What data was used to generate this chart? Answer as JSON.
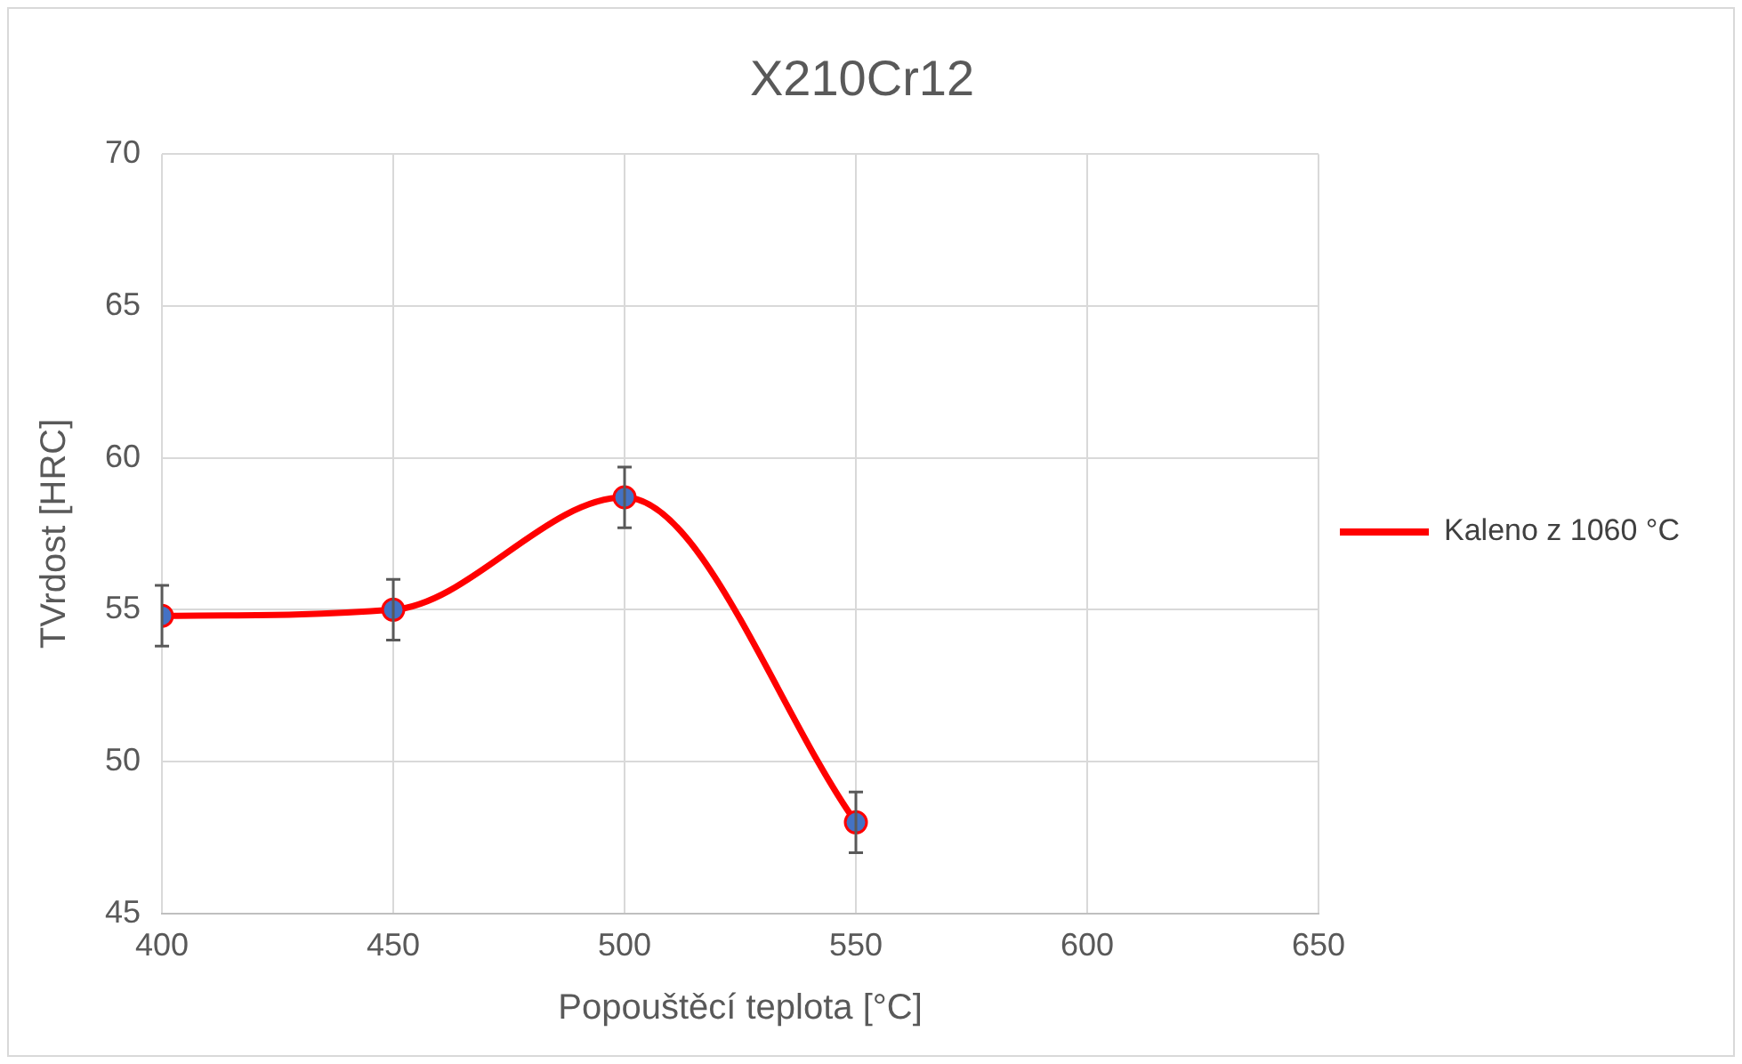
{
  "chart_data": {
    "type": "line",
    "title": "X210Cr12",
    "xlabel": "Popouštěcí teplota [°C]",
    "ylabel": "TVrdost [HRC]",
    "x": [
      400,
      450,
      500,
      550
    ],
    "series": [
      {
        "name": "Kaleno z 1060 °C",
        "color": "#ff0000",
        "colors": [
          "#4472c4",
          "#4472c4",
          "#4472c4",
          "#4472c4"
        ],
        "values": [
          54.8,
          55.0,
          58.7,
          48.0
        ],
        "errors": [
          1,
          1,
          1,
          1
        ]
      }
    ],
    "xlim": [
      400,
      650
    ],
    "xticks": [
      400,
      450,
      500,
      550,
      600,
      650
    ],
    "ylim": [
      45,
      70
    ],
    "yticks": [
      45,
      50,
      55,
      60,
      65,
      70
    ],
    "grid": true,
    "legend": "right",
    "marker": "circle",
    "line_style": "solid"
  }
}
